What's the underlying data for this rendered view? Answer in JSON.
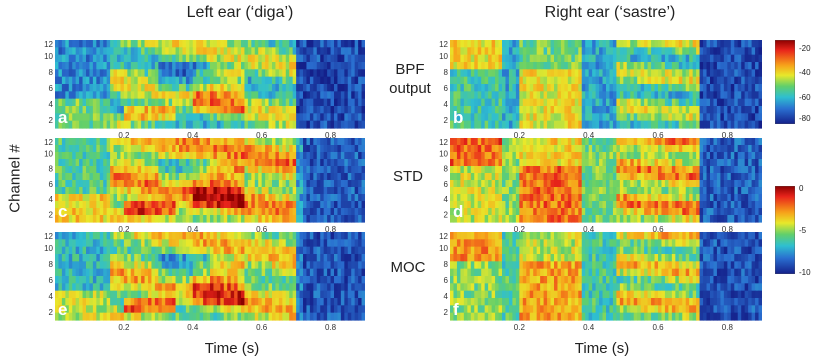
{
  "titles": {
    "left": "Left ear (‘diga’)",
    "right": "Right ear (‘sastre’)"
  },
  "row_labels": {
    "bpf": "BPF\noutput",
    "std": "STD",
    "moc": "MOC"
  },
  "ylabel": "Channel #",
  "xlabel_left": "Time (s)",
  "xlabel_right": "Time (s)",
  "colorbar_top": {
    "ticks": [
      "-20",
      "-40",
      "-60",
      "-80"
    ]
  },
  "colorbar_bottom": {
    "ticks": [
      "0",
      "-5",
      "-10"
    ]
  },
  "chart_data": [
    {
      "type": "heatmap",
      "panel": "a",
      "x_ticks": [
        "0.2",
        "0.4",
        "0.6",
        "0.8"
      ],
      "y_ticks": [
        "12",
        "10",
        "8",
        "6",
        "4",
        "2"
      ],
      "xlim": [
        0,
        0.9
      ],
      "ylim": [
        1,
        12
      ]
    },
    {
      "type": "heatmap",
      "panel": "b",
      "x_ticks": [
        "0.2",
        "0.4",
        "0.6",
        "0.8"
      ],
      "y_ticks": [
        "12",
        "10",
        "8",
        "6",
        "4",
        "2"
      ],
      "xlim": [
        0,
        0.9
      ],
      "ylim": [
        1,
        12
      ]
    },
    {
      "type": "heatmap",
      "panel": "c",
      "x_ticks": [
        "0.2",
        "0.4",
        "0.6",
        "0.8"
      ],
      "y_ticks": [
        "12",
        "10",
        "8",
        "6",
        "4",
        "2"
      ],
      "xlim": [
        0,
        0.9
      ],
      "ylim": [
        1,
        12
      ]
    },
    {
      "type": "heatmap",
      "panel": "d",
      "x_ticks": [
        "0.2",
        "0.4",
        "0.6",
        "0.8"
      ],
      "y_ticks": [
        "12",
        "10",
        "8",
        "6",
        "4",
        "2"
      ],
      "xlim": [
        0,
        0.9
      ],
      "ylim": [
        1,
        12
      ]
    },
    {
      "type": "heatmap",
      "panel": "e",
      "x_ticks": [
        "0.2",
        "0.4",
        "0.6",
        "0.8"
      ],
      "y_ticks": [
        "12",
        "10",
        "8",
        "6",
        "4",
        "2"
      ],
      "xlim": [
        0,
        0.9
      ],
      "ylim": [
        1,
        12
      ]
    },
    {
      "type": "heatmap",
      "panel": "f",
      "x_ticks": [
        "0.2",
        "0.4",
        "0.6",
        "0.8"
      ],
      "y_ticks": [
        "12",
        "10",
        "8",
        "6",
        "4",
        "2"
      ],
      "xlim": [
        0,
        0.9
      ],
      "ylim": [
        1,
        12
      ]
    }
  ]
}
